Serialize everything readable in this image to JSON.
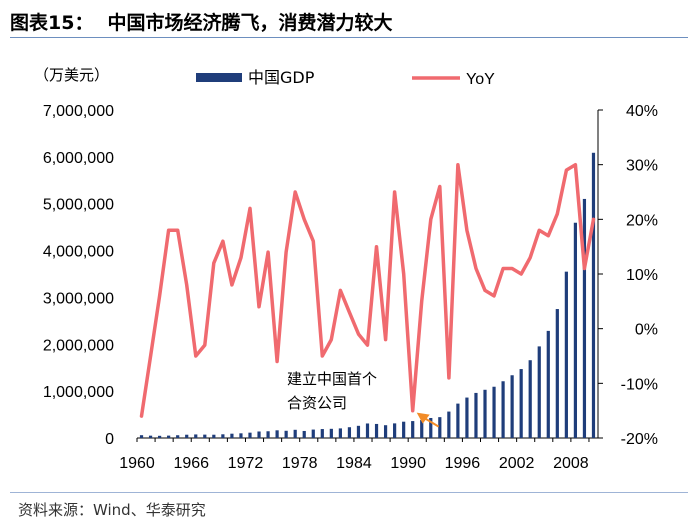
{
  "header": {
    "figure_label": "图表15：",
    "title": "中国市场经济腾飞，消费潜力较大"
  },
  "footer": {
    "source": "资料来源：Wind、华泰研究"
  },
  "chart_data": {
    "type": "bar+line",
    "title": "中国市场经济腾飞，消费潜力较大",
    "y_left_unit": "（万美元）",
    "y_left_range": [
      0,
      7000000
    ],
    "y_left_ticks": [
      "0",
      "1,000,000",
      "2,000,000",
      "3,000,000",
      "4,000,000",
      "5,000,000",
      "6,000,000",
      "7,000,000"
    ],
    "y_right_range": [
      -20,
      40
    ],
    "y_right_ticks": [
      "-20%",
      "-10%",
      "0%",
      "10%",
      "20%",
      "30%",
      "40%"
    ],
    "x_ticks": [
      "1960",
      "1966",
      "1972",
      "1978",
      "1984",
      "1990",
      "1996",
      "2002",
      "2008"
    ],
    "legend": {
      "bar": "中国GDP",
      "line": "YoY"
    },
    "annotation": {
      "line1": "建立中国首个",
      "line2": "合资公司",
      "year": 1990
    },
    "colors": {
      "bar": "#1f3d7a",
      "line": "#f06a6f",
      "arrow": "#f28c28"
    },
    "years": [
      1960,
      1961,
      1962,
      1963,
      1964,
      1965,
      1966,
      1967,
      1968,
      1969,
      1970,
      1971,
      1972,
      1973,
      1974,
      1975,
      1976,
      1977,
      1978,
      1979,
      1980,
      1981,
      1982,
      1983,
      1984,
      1985,
      1986,
      1987,
      1988,
      1989,
      1990,
      1991,
      1992,
      1993,
      1994,
      1995,
      1996,
      1997,
      1998,
      1999,
      2000,
      2001,
      2002,
      2003,
      2004,
      2005,
      2006,
      2007,
      2008,
      2009,
      2010
    ],
    "gdp": [
      60000,
      50000,
      47000,
      51000,
      59000,
      70000,
      76000,
      72000,
      70000,
      79000,
      92000,
      100000,
      114000,
      139000,
      144000,
      164000,
      154000,
      175000,
      150000,
      180000,
      191000,
      196000,
      205000,
      230000,
      260000,
      310000,
      300000,
      273000,
      312000,
      348000,
      361000,
      383000,
      427000,
      445000,
      564000,
      734000,
      863000,
      962000,
      1029000,
      1094000,
      1211000,
      1339000,
      1471000,
      1660000,
      1955000,
      2286000,
      2752000,
      3550000,
      4594000,
      5102000,
      6087000
    ],
    "yoy": [
      -16,
      -5,
      6,
      18,
      18,
      8,
      -5,
      -3,
      12,
      16,
      8,
      13,
      22,
      4,
      14,
      -6,
      14,
      25,
      20,
      16,
      -5,
      -2,
      7,
      3,
      -1,
      -3,
      15,
      -2,
      25,
      10,
      -15,
      5,
      20,
      26,
      -9,
      30,
      18,
      11,
      7,
      6,
      11,
      11,
      10,
      13,
      18,
      17,
      21,
      29,
      30,
      11,
      20
    ]
  }
}
